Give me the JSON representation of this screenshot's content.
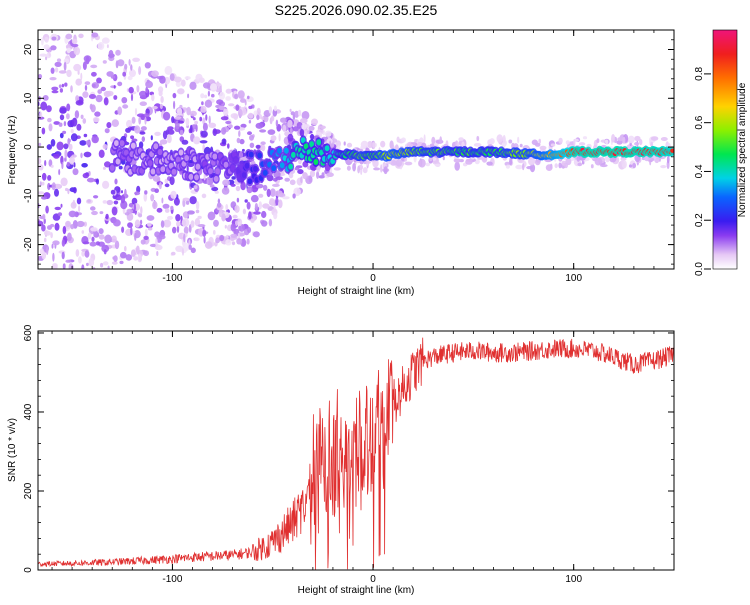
{
  "chart_data": [
    {
      "type": "heatmap",
      "title": "S225.2026.090.02.35.E25",
      "xlabel": "Height of straight line (km)",
      "ylabel": "Frequency (Hz)",
      "xlim": [
        -167,
        150
      ],
      "ylim": [
        -25,
        24
      ],
      "x_ticks": [
        -100,
        0,
        100
      ],
      "y_ticks": [
        -20,
        -10,
        0,
        10,
        20
      ],
      "colorbar": {
        "label": "Normalized spectral amplitude",
        "range": [
          0,
          0.98
        ],
        "ticks": [
          0.0,
          0.2,
          0.4,
          0.6,
          0.8
        ]
      },
      "ridge": {
        "x": [
          -130,
          -100,
          -70,
          -55,
          -40,
          -30,
          -20,
          -10,
          -5,
          0,
          5,
          10,
          20,
          40,
          60,
          80,
          95,
          100,
          120,
          140,
          150
        ],
        "frequency": [
          -2,
          -3,
          -4,
          -4.5,
          -1.5,
          -0.5,
          -1.5,
          -1.5,
          -2,
          -1.5,
          -2,
          -1.5,
          -1,
          -1,
          -1,
          -1.5,
          -1.5,
          -1,
          -1,
          -1,
          -1
        ],
        "amplitude": [
          0.1,
          0.1,
          0.12,
          0.25,
          0.4,
          0.45,
          0.4,
          0.5,
          0.55,
          0.5,
          0.6,
          0.62,
          0.55,
          0.5,
          0.5,
          0.6,
          0.82,
          0.9,
          0.92,
          0.9,
          0.88
        ]
      }
    },
    {
      "type": "line",
      "xlabel": "Height of straight line (km)",
      "ylabel": "SNR (10 * v/v)",
      "xlim": [
        -167,
        150
      ],
      "ylim": [
        0,
        605
      ],
      "x_ticks": [
        -100,
        0,
        100
      ],
      "y_ticks": [
        0,
        200,
        400,
        600
      ],
      "color": "#e03030",
      "series": [
        {
          "name": "SNR",
          "x": [
            -167,
            -150,
            -130,
            -110,
            -100,
            -90,
            -80,
            -70,
            -60,
            -50,
            -40,
            -35,
            -30,
            -25,
            -20,
            -15,
            -10,
            -5,
            0,
            5,
            10,
            15,
            20,
            25,
            30,
            40,
            50,
            60,
            70,
            80,
            90,
            100,
            110,
            120,
            130,
            140,
            150
          ],
          "values": [
            15,
            17,
            20,
            25,
            28,
            32,
            35,
            38,
            45,
            70,
            120,
            160,
            220,
            250,
            270,
            280,
            300,
            340,
            360,
            380,
            420,
            460,
            500,
            530,
            540,
            550,
            555,
            550,
            550,
            555,
            560,
            560,
            555,
            540,
            520,
            530,
            545
          ]
        }
      ]
    }
  ]
}
